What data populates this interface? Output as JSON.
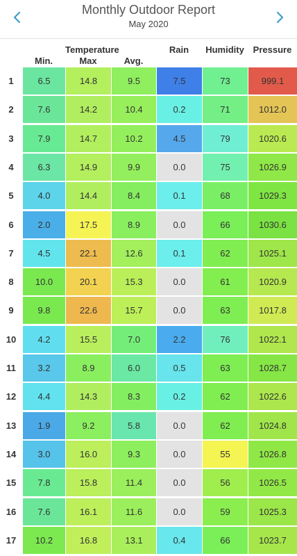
{
  "header": {
    "title": "Monthly Outdoor Report",
    "subtitle": "May 2020",
    "prev_icon": "chevron-left-icon",
    "next_icon": "chevron-right-icon",
    "accent": "#3aa0c8"
  },
  "table": {
    "group_label": "Temperature",
    "columns": [
      "Min.",
      "Max",
      "Avg.",
      "Rain",
      "Humidity",
      "Pressure"
    ],
    "rows": [
      {
        "day": "1",
        "values": [
          "6.5",
          "14.8",
          "9.5",
          "7.5",
          "73",
          "999.1"
        ],
        "colors": [
          "#6be6a0",
          "#b4ef5e",
          "#8fef5e",
          "#3f7fe8",
          "#70f090",
          "#e15a4a"
        ]
      },
      {
        "day": "2",
        "values": [
          "7.6",
          "14.2",
          "10.4",
          "0.2",
          "71",
          "1012.0"
        ],
        "colors": [
          "#6be699",
          "#b0ee5f",
          "#97ef5c",
          "#69f0e4",
          "#74ef86",
          "#e3c455"
        ]
      },
      {
        "day": "3",
        "values": [
          "7.9",
          "14.7",
          "10.2",
          "4.5",
          "79",
          "1020.6"
        ],
        "colors": [
          "#68ea94",
          "#b2ef5e",
          "#94ef5d",
          "#56a8ec",
          "#70eed3",
          "#b9ea51"
        ]
      },
      {
        "day": "4",
        "values": [
          "6.3",
          "14.9",
          "9.9",
          "0.0",
          "75",
          "1026.9"
        ],
        "colors": [
          "#6be6a5",
          "#b4ef5e",
          "#93ef5d",
          "#e3e3e3",
          "#72f0b0",
          "#8fe847"
        ]
      },
      {
        "day": "5",
        "values": [
          "4.0",
          "14.4",
          "8.4",
          "0.1",
          "68",
          "1029.3"
        ],
        "colors": [
          "#5dd4ea",
          "#b0ee5f",
          "#85ee60",
          "#6beeec",
          "#7aef66",
          "#7fe543"
        ]
      },
      {
        "day": "6",
        "values": [
          "2.0",
          "17.5",
          "8.9",
          "0.0",
          "66",
          "1030.6"
        ],
        "colors": [
          "#4aafe8",
          "#f6f454",
          "#8aef5f",
          "#e3e3e3",
          "#7aef58",
          "#7ae343"
        ]
      },
      {
        "day": "7",
        "values": [
          "4.5",
          "22.1",
          "12.6",
          "0.1",
          "62",
          "1025.1"
        ],
        "colors": [
          "#62e4ec",
          "#eebc4e",
          "#a3ef5c",
          "#6beeec",
          "#80ee50",
          "#9ee649"
        ]
      },
      {
        "day": "8",
        "values": [
          "10.0",
          "20.1",
          "15.3",
          "0.0",
          "61",
          "1020.9"
        ],
        "colors": [
          "#7ae94f",
          "#f2d250",
          "#baef59",
          "#e3e3e3",
          "#82ee4f",
          "#b6e84f"
        ]
      },
      {
        "day": "9",
        "values": [
          "9.8",
          "22.6",
          "15.7",
          "0.0",
          "63",
          "1017.8"
        ],
        "colors": [
          "#7ae950",
          "#eeb84e",
          "#bcef58",
          "#e3e3e3",
          "#7eee52",
          "#d0ea53"
        ]
      },
      {
        "day": "10",
        "values": [
          "4.2",
          "15.5",
          "7.0",
          "2.2",
          "76",
          "1022.1"
        ],
        "colors": [
          "#60def0",
          "#b9ef5c",
          "#74ee78",
          "#4aacee",
          "#70efbc",
          "#afe74d"
        ]
      },
      {
        "day": "11",
        "values": [
          "3.2",
          "8.9",
          "6.0",
          "0.5",
          "63",
          "1028.7"
        ],
        "colors": [
          "#59c8ea",
          "#8aef5f",
          "#6be8a3",
          "#67e4ec",
          "#7eee52",
          "#86e645"
        ]
      },
      {
        "day": "12",
        "values": [
          "4.4",
          "14.3",
          "8.3",
          "0.2",
          "62",
          "1022.6"
        ],
        "colors": [
          "#61e2ee",
          "#b0ee5f",
          "#84ee61",
          "#69f0e4",
          "#80ee50",
          "#ace74d"
        ]
      },
      {
        "day": "13",
        "values": [
          "1.9",
          "9.2",
          "5.8",
          "0.0",
          "62",
          "1024.8"
        ],
        "colors": [
          "#4aa9e6",
          "#8bef5f",
          "#69e6ae",
          "#e3e3e3",
          "#80ee50",
          "#a0e64a"
        ]
      },
      {
        "day": "14",
        "values": [
          "3.0",
          "16.0",
          "9.3",
          "0.0",
          "55",
          "1026.8"
        ],
        "colors": [
          "#55c3ea",
          "#bcef5b",
          "#8eef5e",
          "#e3e3e3",
          "#f4f452",
          "#90e846"
        ]
      },
      {
        "day": "15",
        "values": [
          "7.8",
          "15.8",
          "11.4",
          "0.0",
          "56",
          "1026.5"
        ],
        "colors": [
          "#69ea92",
          "#bbef5b",
          "#9bef5c",
          "#e3e3e3",
          "#9fee4e",
          "#92e846"
        ]
      },
      {
        "day": "16",
        "values": [
          "7.6",
          "16.1",
          "11.6",
          "0.0",
          "59",
          "1025.3"
        ],
        "colors": [
          "#6be699",
          "#bdef5b",
          "#9cef5c",
          "#e3e3e3",
          "#8aee4f",
          "#9be649"
        ]
      },
      {
        "day": "17",
        "values": [
          "10.2",
          "16.8",
          "13.1",
          "0.4",
          "66",
          "1023.7"
        ],
        "colors": [
          "#7be94f",
          "#c0ef5a",
          "#a9ef5b",
          "#68e7ec",
          "#7aef58",
          "#a6e64b"
        ]
      }
    ]
  }
}
